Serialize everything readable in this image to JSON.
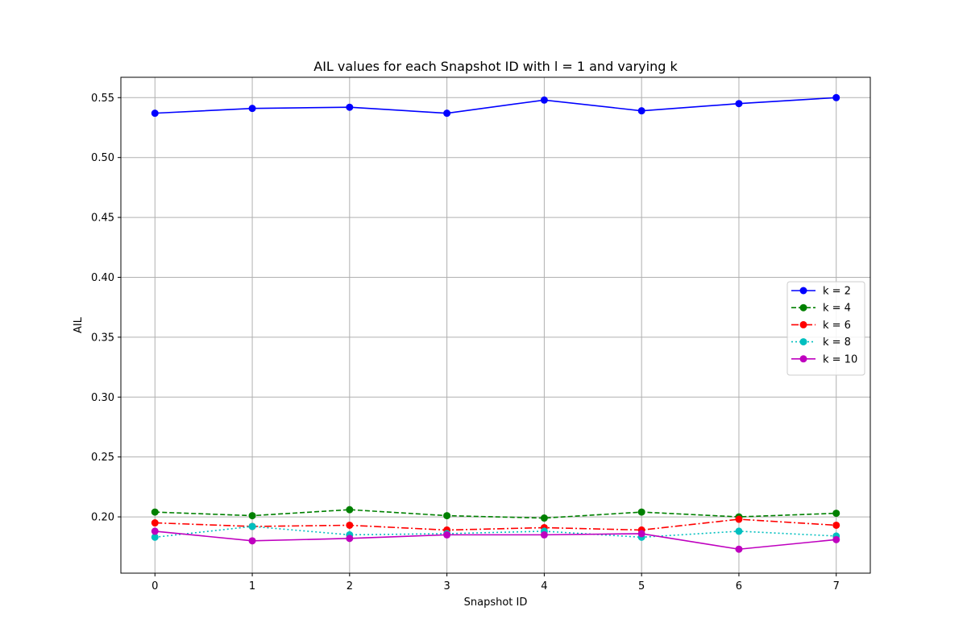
{
  "chart_data": {
    "type": "line",
    "title": "AIL values for each Snapshot ID with l = 1 and varying k",
    "xlabel": "Snapshot ID",
    "ylabel": "AIL",
    "x": [
      0,
      1,
      2,
      3,
      4,
      5,
      6,
      7
    ],
    "xticks": [
      0,
      1,
      2,
      3,
      4,
      5,
      6,
      7
    ],
    "yticks": [
      0.2,
      0.25,
      0.3,
      0.35,
      0.4,
      0.45,
      0.5,
      0.55
    ],
    "xlim": [
      -0.35,
      7.35
    ],
    "ylim": [
      0.153,
      0.567
    ],
    "grid": true,
    "legend_position": "center-right",
    "series": [
      {
        "name": "k = 2",
        "color": "#0000ff",
        "dash": "solid",
        "values": [
          0.537,
          0.541,
          0.542,
          0.537,
          0.548,
          0.539,
          0.545,
          0.55
        ]
      },
      {
        "name": "k = 4",
        "color": "#008000",
        "dash": "dashed",
        "values": [
          0.204,
          0.201,
          0.206,
          0.201,
          0.199,
          0.204,
          0.2,
          0.203
        ]
      },
      {
        "name": "k = 6",
        "color": "#ff0000",
        "dash": "dashdot",
        "values": [
          0.195,
          0.192,
          0.193,
          0.189,
          0.191,
          0.189,
          0.198,
          0.193
        ]
      },
      {
        "name": "k = 8",
        "color": "#00bfbf",
        "dash": "dotted",
        "values": [
          0.183,
          0.192,
          0.185,
          0.186,
          0.188,
          0.183,
          0.188,
          0.184
        ]
      },
      {
        "name": "k = 10",
        "color": "#bf00bf",
        "dash": "solid",
        "values": [
          0.188,
          0.18,
          0.182,
          0.185,
          0.185,
          0.186,
          0.173,
          0.181
        ]
      }
    ]
  }
}
